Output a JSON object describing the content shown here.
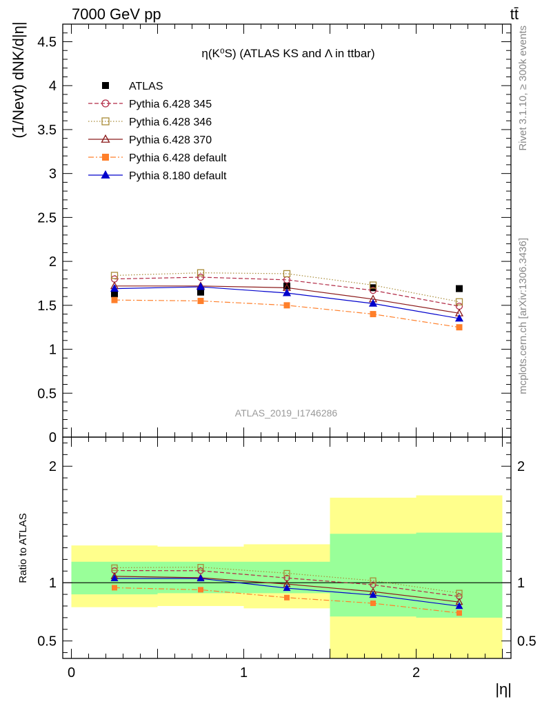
{
  "header": {
    "left": "7000 GeV pp",
    "right": "tt̄"
  },
  "side_labels": {
    "rivet": "Rivet 3.1.10, ≥ 300k events",
    "mcplots": "mcplots.cern.ch [arXiv:1306.3436]"
  },
  "chart_data": {
    "type": "scatter",
    "title": "η(K⁰S) (ATLAS KS and Λ in ttbar)",
    "watermark": "ATLAS_2019_I1746286",
    "xlabel": "|η|",
    "ylabel": "(1/Nevt) dNK/d|η|",
    "ratio_ylabel": "Ratio to ATLAS",
    "xlim": [
      -0.05,
      2.55
    ],
    "ylim": [
      0,
      4.7
    ],
    "ratio_ylim": [
      0.35,
      2.25
    ],
    "x_ticks": [
      "0",
      "1",
      "2"
    ],
    "y_ticks": [
      "0",
      "0.5",
      "1",
      "1.5",
      "2",
      "2.5",
      "3",
      "3.5",
      "4",
      "4.5"
    ],
    "ratio_ticks": [
      "0.5",
      "1",
      "2"
    ],
    "bins": [
      [
        0,
        0.5
      ],
      [
        0.5,
        1.0
      ],
      [
        1.0,
        1.5
      ],
      [
        1.5,
        2.0
      ],
      [
        2.0,
        2.5
      ]
    ],
    "x": [
      0.25,
      0.75,
      1.25,
      1.75,
      2.25
    ],
    "legend_position": "top-left",
    "series": [
      {
        "name": "ATLAS",
        "values": [
          1.63,
          1.65,
          1.72,
          1.7,
          1.69
        ],
        "color": "#000000",
        "marker": "square-filled",
        "line": "none"
      },
      {
        "name": "Pythia 6.428 345",
        "values": [
          1.8,
          1.82,
          1.79,
          1.67,
          1.49
        ],
        "color": "#b22b46",
        "marker": "circle-open",
        "line": "dashed"
      },
      {
        "name": "Pythia 6.428 346",
        "values": [
          1.84,
          1.87,
          1.86,
          1.73,
          1.54
        ],
        "color": "#a88a36",
        "marker": "square-open",
        "line": "dotted"
      },
      {
        "name": "Pythia 6.428 370",
        "values": [
          1.72,
          1.72,
          1.7,
          1.57,
          1.41
        ],
        "color": "#8b1a1a",
        "marker": "triangle-open",
        "line": "solid"
      },
      {
        "name": "Pythia 6.428 default",
        "values": [
          1.56,
          1.55,
          1.5,
          1.4,
          1.25
        ],
        "color": "#ff7f2a",
        "marker": "square-filled",
        "line": "dashdot"
      },
      {
        "name": "Pythia 8.180 default",
        "values": [
          1.69,
          1.71,
          1.64,
          1.52,
          1.35
        ],
        "color": "#0000cc",
        "marker": "triangle-filled",
        "line": "solid"
      }
    ],
    "ratio_bands": {
      "stat": [
        [
          0.9,
          1.18
        ],
        [
          0.91,
          1.18
        ],
        [
          0.91,
          1.18
        ],
        [
          0.71,
          1.42
        ],
        [
          0.7,
          1.43
        ]
      ],
      "total": [
        [
          0.79,
          1.32
        ],
        [
          0.8,
          1.31
        ],
        [
          0.78,
          1.33
        ],
        [
          0.3,
          1.73
        ],
        [
          0.3,
          1.75
        ]
      ]
    }
  }
}
